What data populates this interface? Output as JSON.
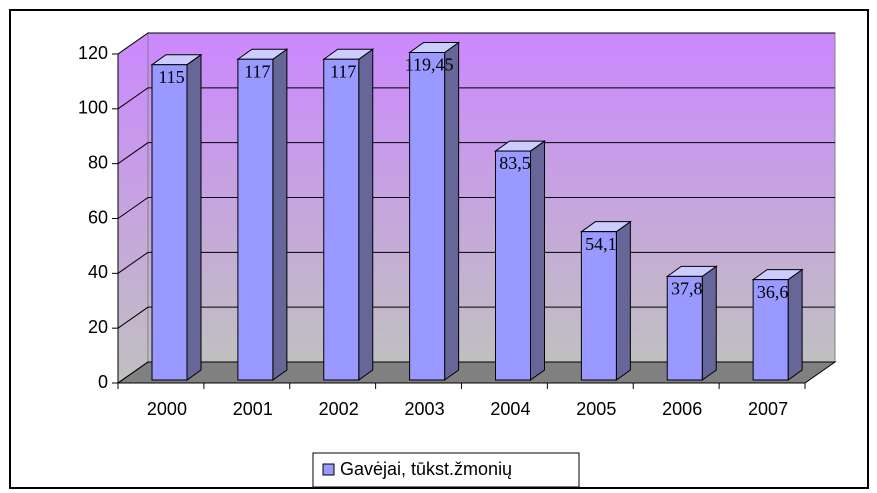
{
  "chart_data": {
    "type": "bar3d",
    "categories": [
      "2000",
      "2001",
      "2002",
      "2003",
      "2004",
      "2005",
      "2006",
      "2007"
    ],
    "series": [
      {
        "name": "Gavėjai, tūkst.žmonių",
        "color": "#9999ff",
        "values": [
          115,
          117,
          117,
          119.45,
          83.5,
          54.1,
          37.8,
          36.6
        ],
        "value_labels": [
          "115",
          "117",
          "117",
          "119,45",
          "83,5",
          "54,1",
          "37,8",
          "36,6"
        ]
      }
    ],
    "ylim": [
      0,
      120
    ],
    "yticks": [
      0,
      20,
      40,
      60,
      80,
      100,
      120
    ],
    "grid": true,
    "legend": "bottom"
  }
}
